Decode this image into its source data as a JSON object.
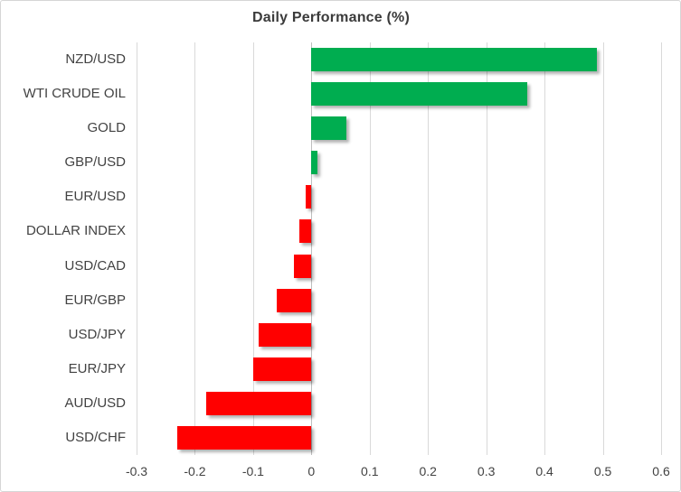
{
  "chart_data": {
    "type": "bar",
    "orientation": "horizontal",
    "title": "Daily Performance (%)",
    "categories": [
      "NZD/USD",
      "WTI CRUDE OIL",
      "GOLD",
      "GBP/USD",
      "EUR/USD",
      "DOLLAR INDEX",
      "USD/CAD",
      "EUR/GBP",
      "USD/JPY",
      "EUR/JPY",
      "AUD/USD",
      "USD/CHF"
    ],
    "values": [
      0.49,
      0.37,
      0.06,
      0.01,
      -0.01,
      -0.02,
      -0.03,
      -0.06,
      -0.09,
      -0.1,
      -0.18,
      -0.23
    ],
    "xlabel": "",
    "ylabel": "",
    "xlim": [
      -0.3,
      0.6
    ],
    "x_ticks": [
      -0.3,
      -0.2,
      -0.1,
      0,
      0.1,
      0.2,
      0.3,
      0.4,
      0.5,
      0.6
    ],
    "x_tick_labels": [
      "-0.3",
      "-0.2",
      "-0.1",
      "0",
      "0.1",
      "0.2",
      "0.3",
      "0.4",
      "0.5",
      "0.6"
    ],
    "grid": true,
    "legend": false,
    "colors": {
      "positive": "#00AD50",
      "negative": "#FF0000",
      "gridline": "#D9D9D9",
      "title_text": "#3B3B3B",
      "axis_text": "#424242"
    }
  }
}
